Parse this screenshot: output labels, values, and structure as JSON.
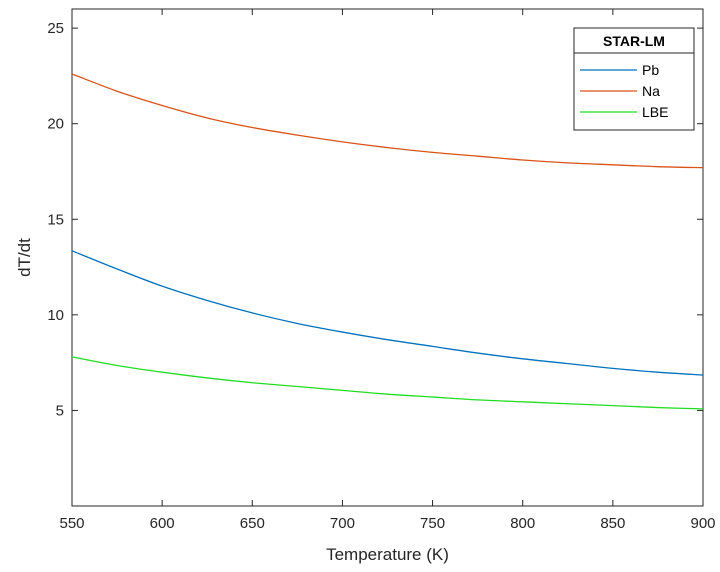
{
  "chart_data": {
    "type": "line",
    "xlabel": "Temperature (K)",
    "ylabel": "dT/dt",
    "xlim": [
      550,
      900
    ],
    "ylim": [
      0,
      26
    ],
    "xticks": [
      550,
      600,
      650,
      700,
      750,
      800,
      850,
      900
    ],
    "yticks": [
      5,
      10,
      15,
      20,
      25
    ],
    "grid": false,
    "legend": {
      "title": "STAR-LM",
      "placement": "top-right"
    },
    "x": [
      550,
      575,
      600,
      625,
      650,
      675,
      700,
      725,
      750,
      775,
      800,
      825,
      850,
      875,
      900
    ],
    "series": [
      {
        "name": "Pb",
        "color": "#0072BD",
        "values": [
          13.35,
          12.4,
          11.5,
          10.75,
          10.1,
          9.55,
          9.1,
          8.7,
          8.35,
          8.0,
          7.7,
          7.45,
          7.2,
          7.0,
          6.85
        ]
      },
      {
        "name": "Na",
        "color": "#D95319",
        "values": [
          22.6,
          21.7,
          20.95,
          20.3,
          19.8,
          19.4,
          19.05,
          18.75,
          18.5,
          18.3,
          18.1,
          17.95,
          17.85,
          17.75,
          17.7
        ]
      },
      {
        "name": "LBE",
        "color": "#22DD22",
        "values": [
          7.8,
          7.35,
          7.0,
          6.7,
          6.45,
          6.25,
          6.05,
          5.85,
          5.7,
          5.55,
          5.45,
          5.35,
          5.25,
          5.15,
          5.08
        ]
      }
    ]
  }
}
